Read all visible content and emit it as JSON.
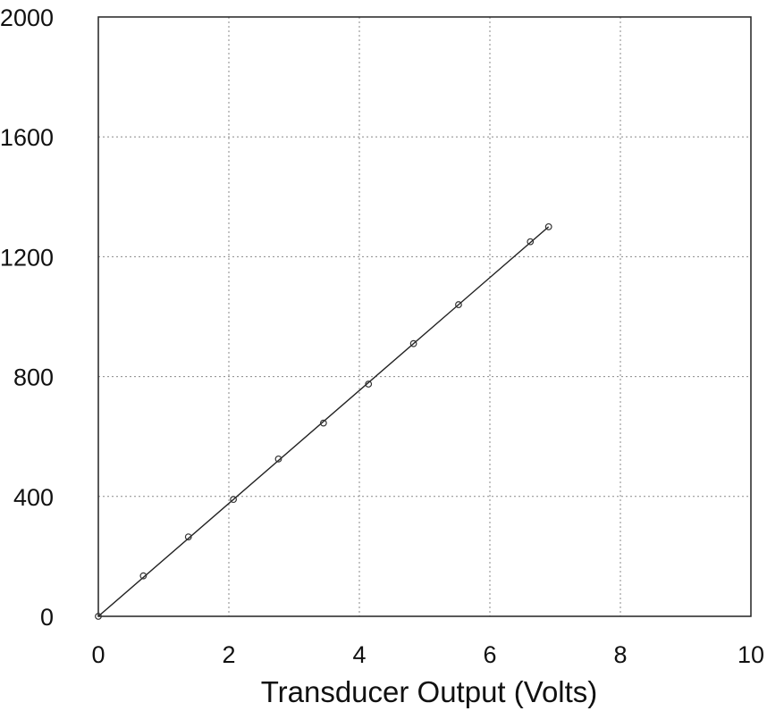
{
  "chart_data": {
    "type": "scatter",
    "title": "",
    "xlabel": "Transducer Output (Volts)",
    "ylabel": "",
    "xlim": [
      0,
      10
    ],
    "ylim": [
      0,
      2000
    ],
    "x_ticks": [
      0,
      2,
      4,
      6,
      8,
      10
    ],
    "y_ticks": [
      0,
      400,
      800,
      1200,
      1600,
      2000
    ],
    "grid": true,
    "legend": "none",
    "series": [
      {
        "marker": "open-circle",
        "x": [
          0,
          0.69,
          1.38,
          2.07,
          2.76,
          3.45,
          4.14,
          4.83,
          5.52,
          6.62,
          6.9
        ],
        "y": [
          0,
          135,
          265,
          390,
          525,
          645,
          775,
          910,
          1040,
          1250,
          1300
        ]
      }
    ],
    "fit_line": {
      "type": "linear",
      "x": [
        0,
        6.9
      ],
      "y": [
        0,
        1300
      ]
    }
  }
}
